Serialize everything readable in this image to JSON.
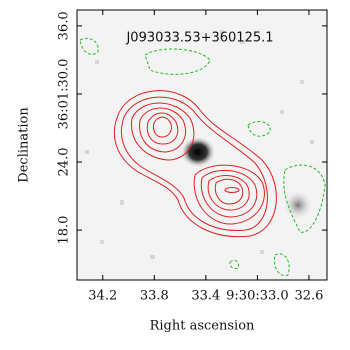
{
  "chart_data": {
    "type": "image",
    "title": "J093033.53+360125.1",
    "xlabel": "Right ascension",
    "ylabel": "Declination",
    "xlim": [
      34.4,
      32.46
    ],
    "xticks": [
      34.2,
      33.8,
      33.4,
      {
        "value": 33.0,
        "label": "9:30:33.0"
      },
      32.6
    ],
    "ylim": [
      13.6,
      37.4
    ],
    "yticks": [
      {
        "value": 18,
        "label": "18.0"
      },
      {
        "value": 24,
        "label": "24.0"
      },
      {
        "value": 30,
        "label": "36:01:30.0"
      },
      {
        "value": 36,
        "label": "36.0"
      }
    ]
  }
}
